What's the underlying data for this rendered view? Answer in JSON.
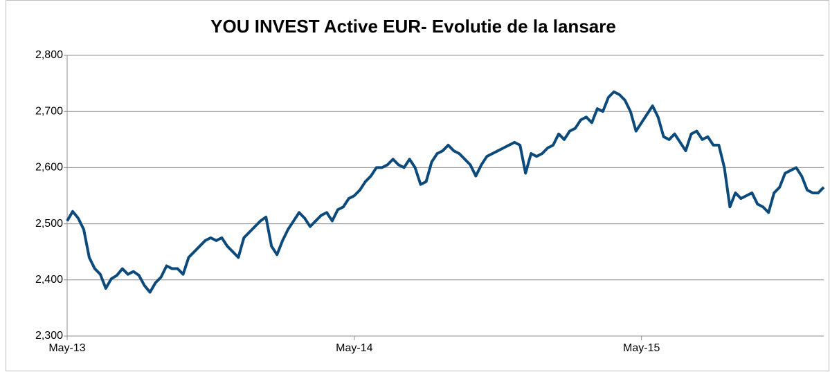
{
  "chart_data": {
    "type": "line",
    "title": "YOU INVEST Active EUR- Evolutie de la lansare",
    "categories": [
      "May-13",
      null,
      null,
      null,
      null,
      null,
      null,
      null,
      null,
      null,
      null,
      null,
      null,
      null,
      null,
      null,
      null,
      null,
      null,
      null,
      null,
      null,
      null,
      null,
      null,
      null,
      null,
      null,
      null,
      null,
      null,
      null,
      null,
      null,
      null,
      null,
      null,
      null,
      null,
      null,
      null,
      null,
      null,
      null,
      null,
      null,
      null,
      null,
      null,
      null,
      null,
      null,
      "May-14",
      null,
      null,
      null,
      null,
      null,
      null,
      null,
      null,
      null,
      null,
      null,
      null,
      null,
      null,
      null,
      null,
      null,
      null,
      null,
      null,
      null,
      null,
      null,
      null,
      null,
      null,
      null,
      null,
      null,
      null,
      null,
      null,
      null,
      null,
      null,
      null,
      null,
      null,
      null,
      null,
      null,
      null,
      null,
      null,
      null,
      null,
      null,
      null,
      null,
      null,
      null,
      "May-15",
      null,
      null,
      null,
      null,
      null,
      null,
      null,
      null,
      null,
      null,
      null,
      null,
      null,
      null,
      null,
      null,
      null,
      null,
      null,
      null,
      null,
      null,
      null,
      null,
      null,
      null,
      null,
      null,
      null,
      null,
      null,
      null,
      null
    ],
    "series": [
      {
        "color": "#0d4a7c",
        "values": [
          2505,
          2522,
          2510,
          2490,
          2440,
          2420,
          2410,
          2385,
          2402,
          2408,
          2420,
          2410,
          2415,
          2408,
          2390,
          2378,
          2395,
          2405,
          2425,
          2420,
          2420,
          2410,
          2440,
          2450,
          2460,
          2470,
          2475,
          2470,
          2475,
          2460,
          2450,
          2440,
          2475,
          2485,
          2495,
          2505,
          2512,
          2460,
          2445,
          2470,
          2490,
          2505,
          2520,
          2510,
          2495,
          2505,
          2515,
          2520,
          2505,
          2525,
          2530,
          2545,
          2550,
          2560,
          2575,
          2585,
          2600,
          2600,
          2605,
          2615,
          2605,
          2600,
          2615,
          2600,
          2570,
          2575,
          2610,
          2625,
          2630,
          2640,
          2630,
          2625,
          2615,
          2605,
          2585,
          2605,
          2620,
          2625,
          2630,
          2635,
          2640,
          2645,
          2640,
          2590,
          2625,
          2620,
          2625,
          2635,
          2640,
          2660,
          2650,
          2665,
          2670,
          2685,
          2690,
          2680,
          2705,
          2700,
          2725,
          2735,
          2730,
          2720,
          2700,
          2665,
          2680,
          2695,
          2710,
          2690,
          2655,
          2650,
          2660,
          2645,
          2630,
          2660,
          2665,
          2650,
          2655,
          2640,
          2640,
          2600,
          2530,
          2555,
          2545,
          2550,
          2555,
          2535,
          2530,
          2520,
          2555,
          2565,
          2590,
          2595,
          2600,
          2585,
          2560,
          2555,
          2555,
          2565
        ]
      }
    ],
    "ylim": [
      2300,
      2800
    ],
    "yticks": [
      {
        "value": 2300,
        "label": "2,300"
      },
      {
        "value": 2400,
        "label": "2,400"
      },
      {
        "value": 2500,
        "label": "2,500"
      },
      {
        "value": 2600,
        "label": "2,600"
      },
      {
        "value": 2700,
        "label": "2,700"
      },
      {
        "value": 2800,
        "label": "2,800"
      }
    ],
    "grid": true
  }
}
